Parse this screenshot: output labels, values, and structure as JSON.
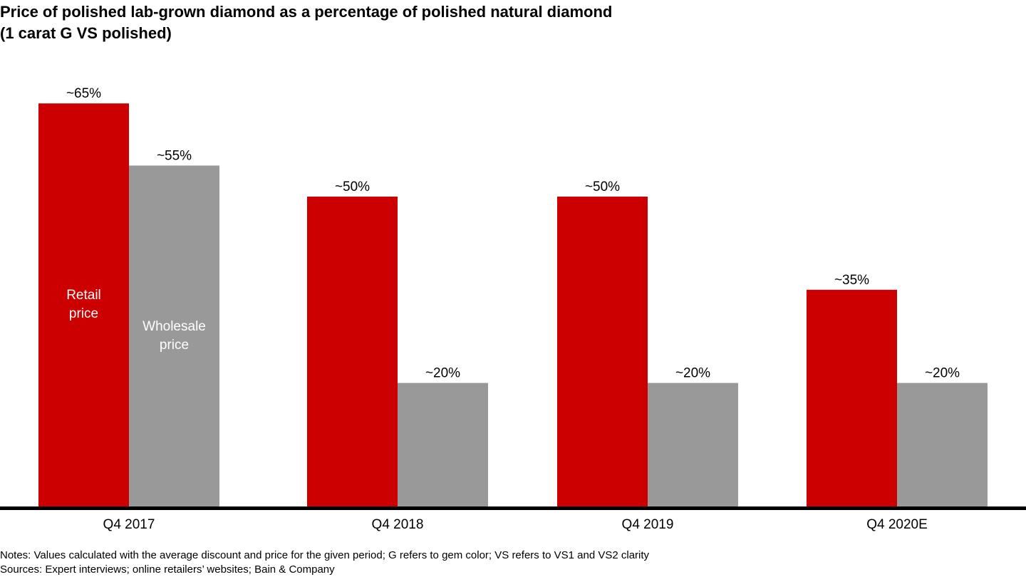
{
  "title": {
    "line1": "Price of polished lab-grown diamond as a percentage of polished natural diamond",
    "line2": "(1 carat G VS polished)"
  },
  "chart_data": {
    "type": "bar",
    "categories": [
      "Q4 2017",
      "Q4 2018",
      "Q4 2019",
      "Q4 2020E"
    ],
    "series": [
      {
        "name": "Retail price",
        "values": [
          65,
          50,
          50,
          35
        ],
        "labels": [
          "~65%",
          "~50%",
          "~50%",
          "~35%"
        ],
        "color": "#cc0000",
        "label_color": "#ffffff"
      },
      {
        "name": "Wholesale price",
        "values": [
          55,
          20,
          20,
          20
        ],
        "labels": [
          "~55%",
          "~20%",
          "~20%",
          "~20%"
        ],
        "color": "#999999",
        "label_color": "#ffffff"
      }
    ],
    "series_label_lines": [
      [
        "Retail",
        "price"
      ],
      [
        "Wholesale",
        "price"
      ]
    ],
    "ylim": [
      0,
      65
    ],
    "grid": false,
    "legend": "inside first category bars",
    "axis_color": "#000000"
  },
  "notes": {
    "notes_text": "Notes: Values calculated with the average discount and price for the given period; G refers to gem color; VS refers to VS1 and VS2 clarity",
    "sources_text": "Sources: Expert interviews; online retailers’ websites; Bain & Company"
  }
}
